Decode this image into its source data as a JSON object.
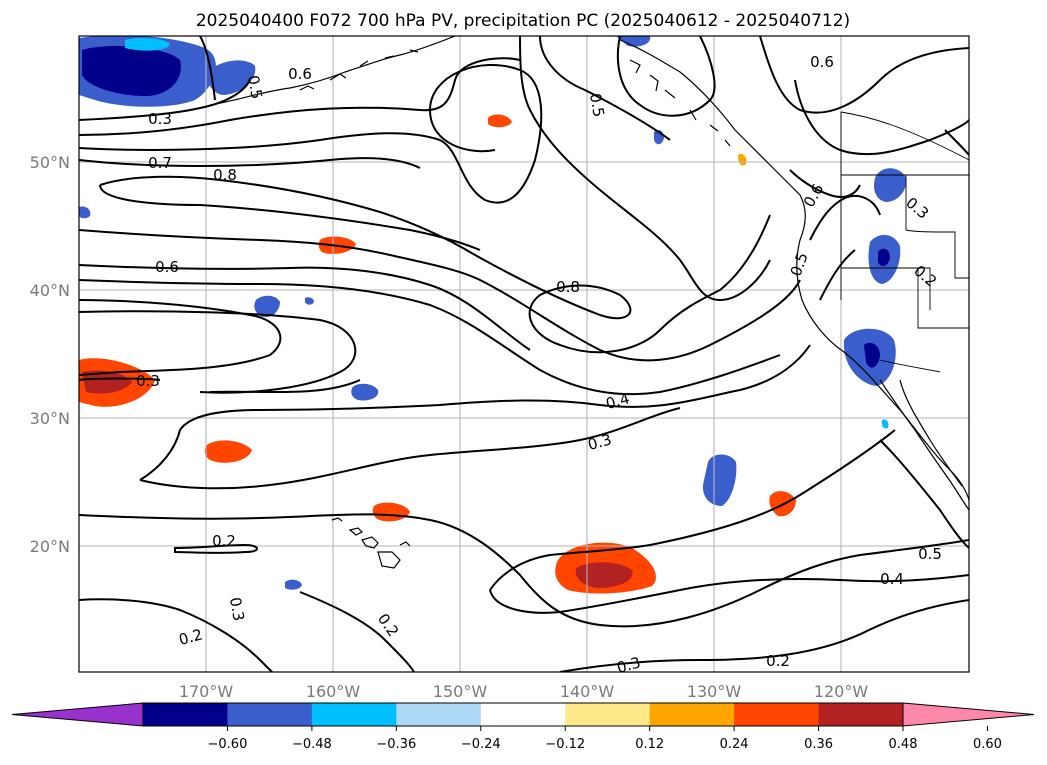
{
  "title": "2025040400 F072 700 hPa PV, precipitation PC (2025040612 - 2025040712)",
  "map": {
    "lon_range": [
      -180,
      -110
    ],
    "lat_range": [
      10,
      60
    ],
    "lat_labels": [
      "50°N",
      "40°N",
      "30°N",
      "20°N"
    ],
    "lon_labels": [
      "170°W",
      "160°W",
      "150°W",
      "140°W",
      "130°W",
      "120°W"
    ]
  },
  "contour_labels": [
    "0.6",
    "0.5",
    "0.3",
    "0.7",
    "0.8",
    "0.6",
    "0.3",
    "0.2",
    "0.2",
    "0.3",
    "0.2",
    "0.5",
    "0.8",
    "0.4",
    "0.3",
    "0.3",
    "0.2",
    "0.4",
    "0.5",
    "0.6",
    "0.6",
    "0.5",
    "0.3",
    "0.2"
  ],
  "colorbar": {
    "ticks": [
      "−0.60",
      "−0.48",
      "−0.36",
      "−0.24",
      "−0.12",
      "0.12",
      "0.24",
      "0.36",
      "0.48",
      "0.60"
    ],
    "colors": [
      "#9932cc",
      "#00008b",
      "#3a5fcd",
      "#00bfff",
      "#add8f5",
      "#ffffff",
      "#ffe88a",
      "#ffa500",
      "#ff4500",
      "#b22222",
      "#ff88aa"
    ]
  }
}
